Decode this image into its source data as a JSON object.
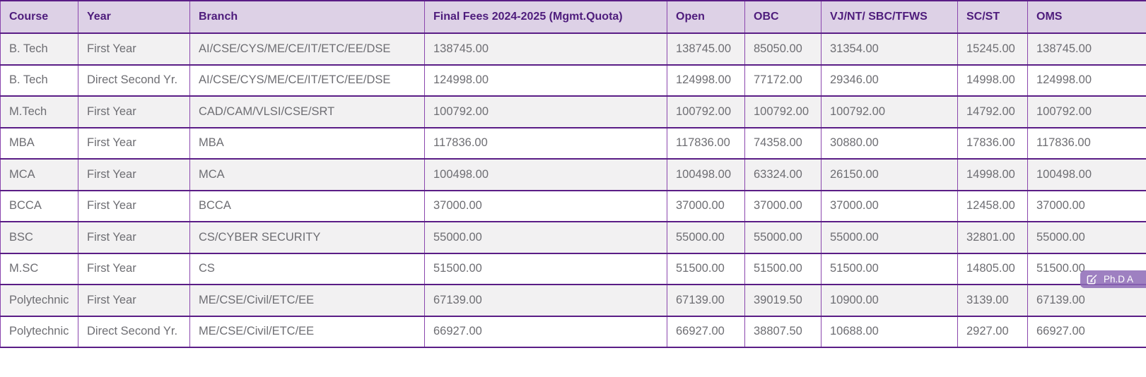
{
  "table": {
    "columns": [
      {
        "key": "course",
        "label": "Course"
      },
      {
        "key": "year",
        "label": "Year"
      },
      {
        "key": "branch",
        "label": "Branch"
      },
      {
        "key": "final-fees",
        "label": "Final Fees 2024-2025 (Mgmt.Quota)"
      },
      {
        "key": "open",
        "label": "Open"
      },
      {
        "key": "obc",
        "label": "OBC"
      },
      {
        "key": "vjnt-sbc-tfws",
        "label": "VJ/NT/ SBC/TFWS"
      },
      {
        "key": "sc-st",
        "label": "SC/ST"
      },
      {
        "key": "oms",
        "label": "OMS"
      }
    ],
    "rows": [
      [
        "B. Tech",
        "First Year",
        "AI/CSE/CYS/ME/CE/IT/ETC/EE/DSE",
        "138745.00",
        "138745.00",
        "85050.00",
        "31354.00",
        "15245.00",
        "138745.00"
      ],
      [
        "B. Tech",
        "Direct Second Yr.",
        "AI/CSE/CYS/ME/CE/IT/ETC/EE/DSE",
        "124998.00",
        "124998.00",
        "77172.00",
        "29346.00",
        "14998.00",
        "124998.00"
      ],
      [
        "M.Tech",
        "First Year",
        "CAD/CAM/VLSI/CSE/SRT",
        "100792.00",
        "100792.00",
        "100792.00",
        "100792.00",
        "14792.00",
        "100792.00"
      ],
      [
        "MBA",
        "First Year",
        "MBA",
        "117836.00",
        "117836.00",
        "74358.00",
        "30880.00",
        "17836.00",
        "117836.00"
      ],
      [
        "MCA",
        "First Year",
        "MCA",
        "100498.00",
        "100498.00",
        "63324.00",
        "26150.00",
        "14998.00",
        "100498.00"
      ],
      [
        "BCCA",
        "First Year",
        "BCCA",
        "37000.00",
        "37000.00",
        "37000.00",
        "37000.00",
        "12458.00",
        "37000.00"
      ],
      [
        "BSC",
        "First Year",
        "CS/CYBER SECURITY",
        "55000.00",
        "55000.00",
        "55000.00",
        "55000.00",
        "32801.00",
        "55000.00"
      ],
      [
        "M.SC",
        "First Year",
        "CS",
        "51500.00",
        "51500.00",
        "51500.00",
        "51500.00",
        "14805.00",
        "51500.00"
      ],
      [
        "Polytechnic",
        "First Year",
        "ME/CSE/Civil/ETC/EE",
        "67139.00",
        "67139.00",
        "39019.50",
        "10900.00",
        "3139.00",
        "67139.00"
      ],
      [
        "Polytechnic",
        "Direct Second Yr.",
        "ME/CSE/Civil/ETC/EE",
        "66927.00",
        "66927.00",
        "38807.50",
        "10688.00",
        "2927.00",
        "66927.00"
      ]
    ]
  },
  "badge": {
    "label": "Ph.D A",
    "icon": "pencil-square-icon"
  },
  "colors": {
    "header_bg": "#ddd1e6",
    "header_text": "#4e1c7c",
    "border_horizontal": "#5a1d86",
    "border_vertical": "#8a46ad",
    "row_stripe": "#f2f1f2",
    "cell_text": "#6e6e73",
    "badge_bg": "#8d6ab6",
    "badge_text": "#ffffff"
  }
}
